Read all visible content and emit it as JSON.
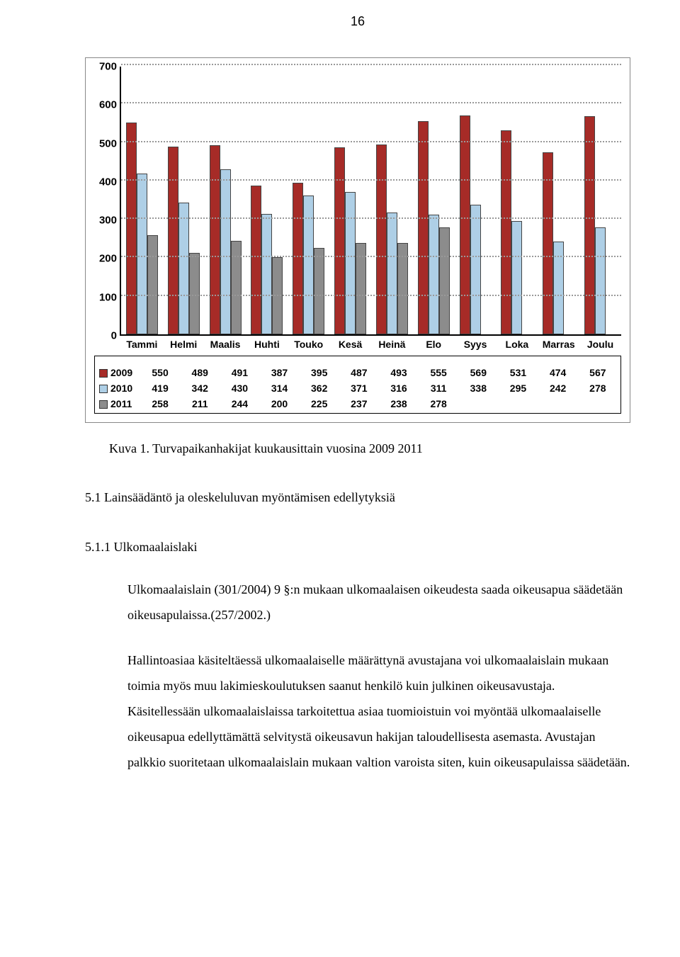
{
  "page_number": "16",
  "chart": {
    "type": "bar",
    "ylim": [
      0,
      700
    ],
    "ytick_step": 100,
    "background_color": "#ffffff",
    "grid_color": "#999999",
    "axis_color": "#000000",
    "bar_border_color": "#444444",
    "tick_fontsize": 15,
    "label_fontsize": 14,
    "categories": [
      "Tammi",
      "Helmi",
      "Maalis",
      "Huhti",
      "Touko",
      "Kesä",
      "Heinä",
      "Elo",
      "Syys",
      "Loka",
      "Marras",
      "Joulu"
    ],
    "series": [
      {
        "name": "2009",
        "color": "#a62b27",
        "values": [
          550,
          489,
          491,
          387,
          395,
          487,
          493,
          555,
          569,
          531,
          474,
          567
        ]
      },
      {
        "name": "2010",
        "color": "#aecfe6",
        "values": [
          419,
          342,
          430,
          314,
          362,
          371,
          316,
          311,
          338,
          295,
          242,
          278
        ]
      },
      {
        "name": "2011",
        "color": "#8c8c8c",
        "values": [
          258,
          211,
          244,
          200,
          225,
          237,
          238,
          278,
          null,
          null,
          null,
          null
        ]
      }
    ]
  },
  "caption": "Kuva 1. Turvapaikanhakijat kuukausittain vuosina 2009 2011",
  "section_heading": "5.1 Lainsäädäntö ja oleskeluluvan myöntämisen edellytyksiä",
  "subsection_heading": "5.1.1 Ulkomaalaislaki",
  "paragraph1": "Ulkomaalaislain (301/2004) 9 §:n mukaan ulkomaalaisen oikeudesta saada oikeusapua säädetään oikeusapulaissa.(257/2002.)",
  "paragraph2": "Hallintoasiaa käsiteltäessä ulkomaalaiselle määrättynä avustajana voi ulkomaalaislain mukaan toimia myös muu lakimieskoulutuksen saanut henkilö kuin julkinen oikeusavustaja. Käsitellessään ulkomaalaislaissa tarkoitettua asiaa tuomioistuin voi myöntää ulkomaalaiselle oikeusapua edellyttämättä selvitystä oikeusavun hakijan taloudellisesta asemasta. Avustajan palkkio suoritetaan ulkomaalaislain mukaan valtion varoista siten, kuin oikeusapulaissa säädetään."
}
